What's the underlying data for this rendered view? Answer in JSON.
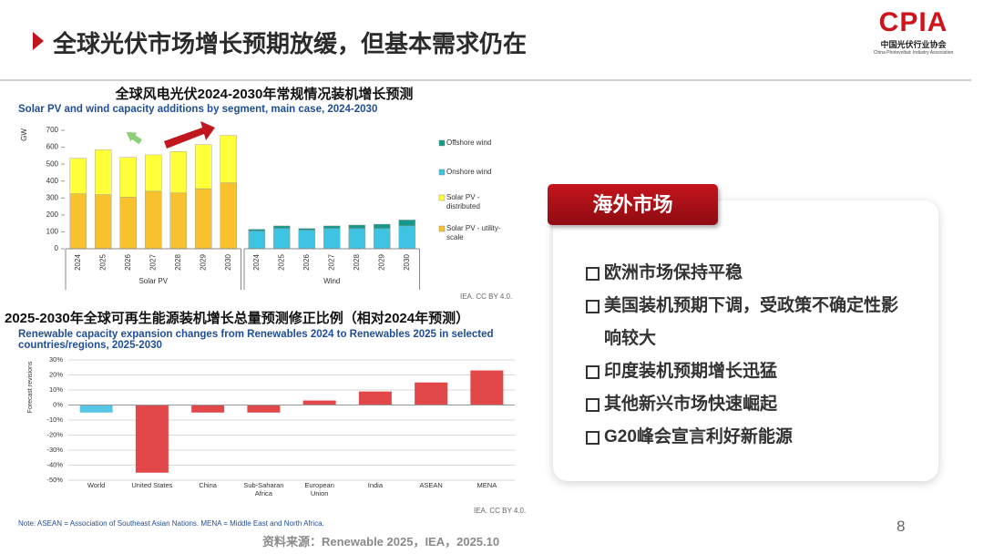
{
  "header": {
    "title": "全球光伏市场增长预期放缓，但基本需求仍在",
    "logo": {
      "text": "CPIA",
      "name_cn": "中国光伏行业协会",
      "name_en": "China Photovoltaic Industry Association"
    }
  },
  "chart_data": [
    {
      "type": "stacked-bar",
      "title": "全球风电光伏2024-2030年常规情况装机增长预测",
      "subtitle": "Solar PV and wind capacity additions by segment, main case, 2024-2030",
      "ylabel": "GW",
      "ylim": [
        0,
        700
      ],
      "yticks": [
        0,
        100,
        200,
        300,
        400,
        500,
        600,
        700
      ],
      "grid": false,
      "groups": [
        {
          "name": "Solar PV",
          "categories": [
            "2024",
            "2025",
            "2026",
            "2027",
            "2028",
            "2029",
            "2030"
          ]
        },
        {
          "name": "Wind",
          "categories": [
            "2024",
            "2025",
            "2026",
            "2027",
            "2028",
            "2029",
            "2030"
          ]
        }
      ],
      "series": [
        {
          "name": "Offshore wind",
          "color": "#15988a",
          "values": [
            null,
            null,
            null,
            null,
            null,
            null,
            null,
            10,
            15,
            10,
            15,
            20,
            25,
            35
          ]
        },
        {
          "name": "Onshore wind",
          "color": "#3fc3e3",
          "values": [
            null,
            null,
            null,
            null,
            null,
            null,
            null,
            105,
            120,
            110,
            120,
            120,
            120,
            135
          ]
        },
        {
          "name": "Solar PV - distributed",
          "color": "#ffff3a",
          "values": [
            210,
            265,
            235,
            215,
            245,
            260,
            280,
            null,
            null,
            null,
            null,
            null,
            null,
            null
          ]
        },
        {
          "name": "Solar PV - utility-scale",
          "color": "#f7c22e",
          "values": [
            325,
            320,
            305,
            340,
            330,
            355,
            390,
            null,
            null,
            null,
            null,
            null,
            null,
            null
          ]
        }
      ],
      "source": "IEA. CC BY 4.0."
    },
    {
      "type": "bar",
      "title": "2025-2030年全球可再生能源装机增长总量预测修正比例（相对2024年预测）",
      "subtitle": "Renewable capacity expansion changes from Renewables 2024 to Renewables 2025 in selected countries/regions, 2025-2030",
      "ylabel": "Forecast revisions",
      "ylim": [
        -50,
        30
      ],
      "grid": true,
      "yticks": [
        {
          "value": -50,
          "label": "-50%"
        },
        {
          "value": -40,
          "label": "-40%"
        },
        {
          "value": -30,
          "label": "-30%"
        },
        {
          "value": -20,
          "label": "-20%"
        },
        {
          "value": -10,
          "label": "-10%"
        },
        {
          "value": 0,
          "label": "0%"
        },
        {
          "value": 10,
          "label": "10%"
        },
        {
          "value": 20,
          "label": "20%"
        },
        {
          "value": 30,
          "label": "30%"
        }
      ],
      "categories": [
        "World",
        "United States",
        "China",
        "Sub-Saharan\nAfrica",
        "European\nUnion",
        "India",
        "ASEAN",
        "MENA"
      ],
      "values": [
        -5,
        -45,
        -5,
        -5,
        3,
        9,
        15,
        23
      ],
      "colors": [
        "#55c6e6",
        "#e2474a",
        "#e2474a",
        "#e2474a",
        "#e2474a",
        "#e2474a",
        "#e2474a",
        "#e2474a"
      ],
      "source": "IEA. CC BY 4.0.",
      "note": "Note: ASEAN = Association of Southeast Asian Nations. MENA = Middle East and North Africa."
    }
  ],
  "panel": {
    "title": "海外市场",
    "items": [
      "欧洲市场保持平稳",
      "美国装机预期下调，受政策不确定性影响较大",
      "印度装机预期增长迅猛",
      "其他新兴市场快速崛起",
      "G20峰会宣言利好新能源"
    ]
  },
  "footer": {
    "source": "资料来源：Renewable 2025，IEA，2025.10",
    "page": 8
  }
}
